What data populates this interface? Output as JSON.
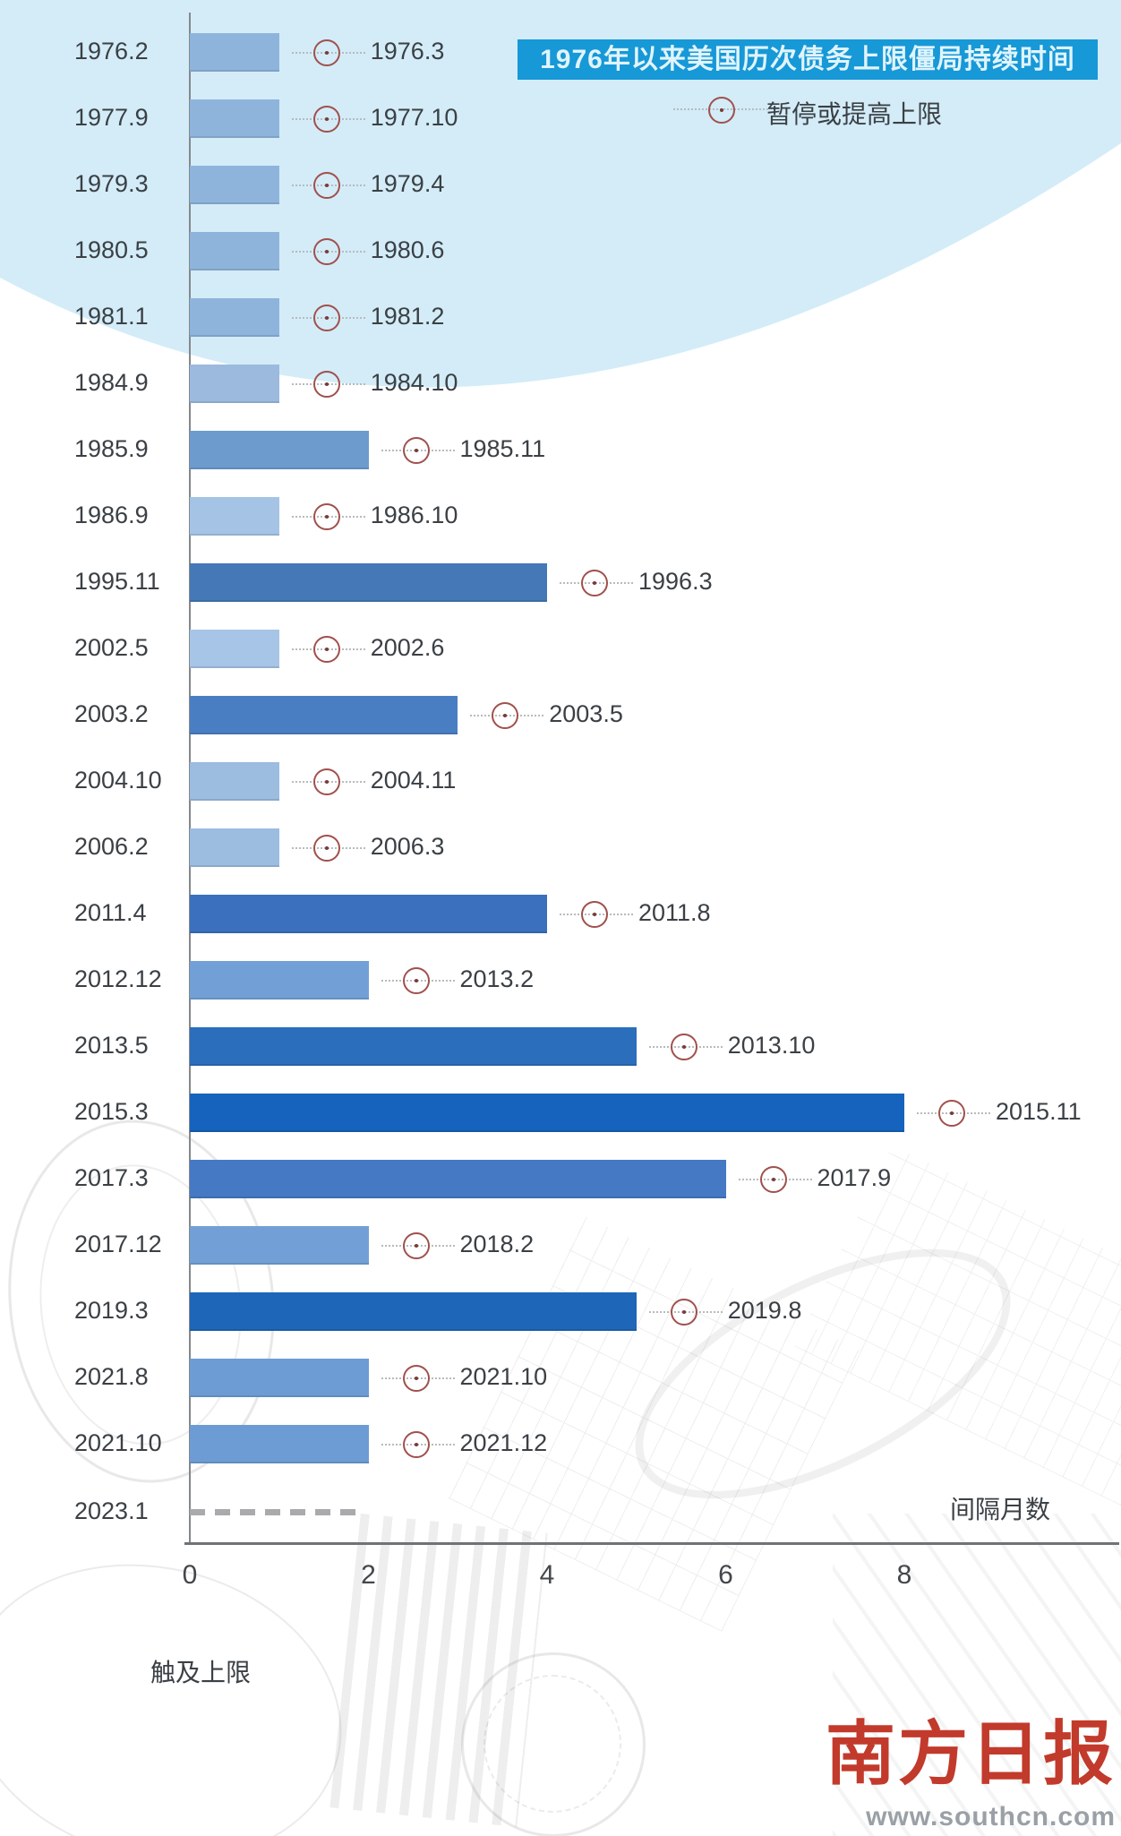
{
  "title": "1976年以来美国历次债务上限僵局持续时间",
  "legend": {
    "marker": "circle-dot-marker",
    "label": "暂停或提高上限"
  },
  "axis": {
    "x_ticks": [
      "0",
      "2",
      "4",
      "6",
      "8"
    ],
    "x_axis_label": "间隔月数",
    "baseline_label": "触及上限"
  },
  "footer": {
    "newspaper": "南方日报",
    "website": "www.southcn.com"
  },
  "colors": {
    "title_bg": "#1798d7",
    "title_text": "#e0f4fc",
    "top_band": "#d3ecf8",
    "marker_ring": "#a0504c",
    "dashed_line": "#a8aaac"
  },
  "chart_data": {
    "type": "bar",
    "orientation": "horizontal",
    "title": "1976年以来美国历次债务上限僵局持续时间",
    "xlabel": "间隔月数",
    "ylabel": "触及上限",
    "xlim": [
      0,
      8.7
    ],
    "x_ticks": [
      0,
      2,
      4,
      6,
      8
    ],
    "value_unit": "months",
    "legend_marker_meaning": "暂停或提高上限",
    "categories": [
      "1976.2",
      "1977.9",
      "1979.3",
      "1980.5",
      "1981.1",
      "1984.9",
      "1985.9",
      "1986.9",
      "1995.11",
      "2002.5",
      "2003.2",
      "2004.10",
      "2006.2",
      "2011.4",
      "2012.12",
      "2013.5",
      "2015.3",
      "2017.3",
      "2017.12",
      "2019.3",
      "2021.8",
      "2021.10"
    ],
    "values": [
      1,
      1,
      1,
      1,
      1,
      1,
      2,
      1,
      4,
      1,
      3,
      1,
      1,
      4,
      2,
      5,
      8,
      6,
      2,
      5,
      2,
      2
    ],
    "rows": [
      {
        "start": "1976.2",
        "end": "1976.3",
        "months": 1,
        "color": "#8fb4dc"
      },
      {
        "start": "1977.9",
        "end": "1977.10",
        "months": 1,
        "color": "#8fb4dc"
      },
      {
        "start": "1979.3",
        "end": "1979.4",
        "months": 1,
        "color": "#8fb4dc"
      },
      {
        "start": "1980.5",
        "end": "1980.6",
        "months": 1,
        "color": "#8fb4dc"
      },
      {
        "start": "1981.1",
        "end": "1981.2",
        "months": 1,
        "color": "#8fb4dc"
      },
      {
        "start": "1984.9",
        "end": "1984.10",
        "months": 1,
        "color": "#9bbade"
      },
      {
        "start": "1985.9",
        "end": "1985.11",
        "months": 2,
        "color": "#6d9bce"
      },
      {
        "start": "1986.9",
        "end": "1986.10",
        "months": 1,
        "color": "#a5c3e5"
      },
      {
        "start": "1995.11",
        "end": "1996.3",
        "months": 4,
        "color": "#4478b6"
      },
      {
        "start": "2002.5",
        "end": "2002.6",
        "months": 1,
        "color": "#a7c5e6"
      },
      {
        "start": "2003.2",
        "end": "2003.5",
        "months": 3,
        "color": "#4a7ec2"
      },
      {
        "start": "2004.10",
        "end": "2004.11",
        "months": 1,
        "color": "#9cbce0"
      },
      {
        "start": "2006.2",
        "end": "2006.3",
        "months": 1,
        "color": "#9cbce0"
      },
      {
        "start": "2011.4",
        "end": "2011.8",
        "months": 4,
        "color": "#3a70be"
      },
      {
        "start": "2012.12",
        "end": "2013.2",
        "months": 2,
        "color": "#72a0d6"
      },
      {
        "start": "2013.5",
        "end": "2013.10",
        "months": 5,
        "color": "#2b6ebc"
      },
      {
        "start": "2015.3",
        "end": "2015.11",
        "months": 8,
        "color": "#1563bd"
      },
      {
        "start": "2017.3",
        "end": "2017.9",
        "months": 6,
        "color": "#4579c4"
      },
      {
        "start": "2017.12",
        "end": "2018.2",
        "months": 2,
        "color": "#72a0d6"
      },
      {
        "start": "2019.3",
        "end": "2019.8",
        "months": 5,
        "color": "#1e66b8"
      },
      {
        "start": "2021.8",
        "end": "2021.10",
        "months": 2,
        "color": "#6d9cd4"
      },
      {
        "start": "2021.10",
        "end": "2021.12",
        "months": 2,
        "color": "#6d9cd4"
      }
    ],
    "ongoing_row": {
      "start": "2023.1",
      "months_so_far": 2,
      "style": "dashed"
    }
  }
}
